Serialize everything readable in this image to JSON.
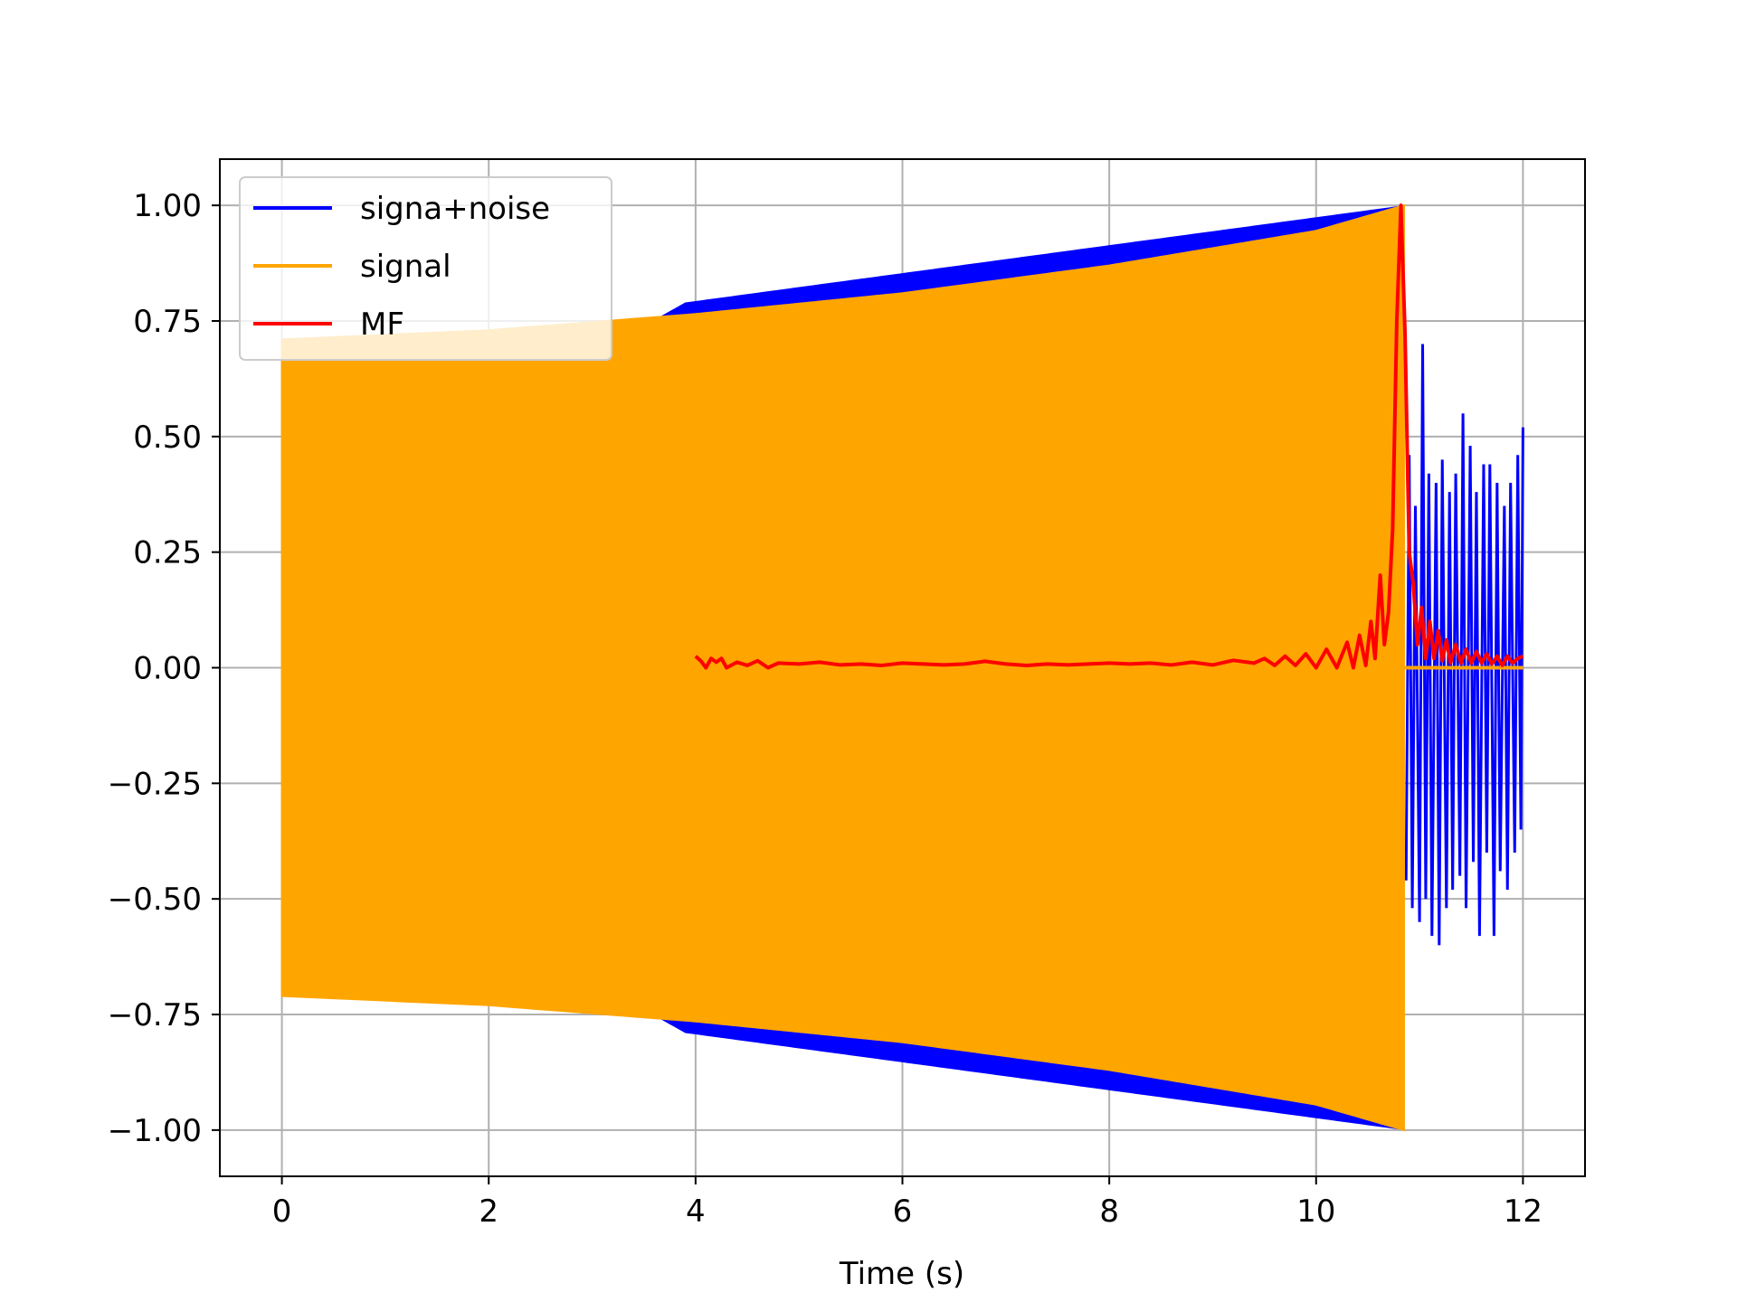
{
  "chart_data": {
    "type": "line",
    "title": "",
    "xlabel": "Time (s)",
    "ylabel": "",
    "xlim": [
      -0.6,
      12.6
    ],
    "ylim": [
      -1.1,
      1.1
    ],
    "grid": true,
    "legend_position": "top-left",
    "xticks": [
      0,
      2,
      4,
      6,
      8,
      10,
      12
    ],
    "xtick_labels": [
      "0",
      "2",
      "4",
      "6",
      "8",
      "10",
      "12"
    ],
    "yticks": [
      1.0,
      0.75,
      0.5,
      0.25,
      0.0,
      -0.25,
      -0.5,
      -0.75,
      -1.0
    ],
    "ytick_labels": [
      "1.00",
      "0.75",
      "0.50",
      "0.25",
      "0.00",
      "−0.25",
      "−0.50",
      "−0.75",
      "−1.00"
    ],
    "series": [
      {
        "name": "signa+noise",
        "color": "#0000ff",
        "t_start": 0.0,
        "t_end": 12.0,
        "signal_end": 10.85,
        "envelope": [
          [
            0.0,
            0.3
          ],
          [
            3.9,
            0.79
          ],
          [
            10.85,
            1.0
          ]
        ],
        "samples": [
          [
            10.87,
            -0.46
          ],
          [
            10.9,
            0.46
          ],
          [
            10.93,
            -0.52
          ],
          [
            10.96,
            0.35
          ],
          [
            11.0,
            -0.55
          ],
          [
            11.03,
            0.7
          ],
          [
            11.06,
            -0.5
          ],
          [
            11.09,
            0.42
          ],
          [
            11.12,
            -0.58
          ],
          [
            11.16,
            0.4
          ],
          [
            11.19,
            -0.6
          ],
          [
            11.22,
            0.45
          ],
          [
            11.26,
            -0.52
          ],
          [
            11.29,
            0.38
          ],
          [
            11.32,
            -0.48
          ],
          [
            11.35,
            0.42
          ],
          [
            11.39,
            -0.45
          ],
          [
            11.42,
            0.55
          ],
          [
            11.45,
            -0.52
          ],
          [
            11.49,
            0.48
          ],
          [
            11.52,
            -0.42
          ],
          [
            11.55,
            0.38
          ],
          [
            11.58,
            -0.58
          ],
          [
            11.62,
            0.44
          ],
          [
            11.65,
            -0.4
          ],
          [
            11.68,
            0.44
          ],
          [
            11.72,
            -0.58
          ],
          [
            11.75,
            0.4
          ],
          [
            11.78,
            -0.44
          ],
          [
            11.82,
            0.35
          ],
          [
            11.85,
            -0.48
          ],
          [
            11.88,
            0.4
          ],
          [
            11.92,
            -0.4
          ],
          [
            11.95,
            0.46
          ],
          [
            11.98,
            -0.35
          ],
          [
            12.0,
            0.52
          ]
        ]
      },
      {
        "name": "signal",
        "color": "#ffa500",
        "t_start": 0.0,
        "t_end": 12.0,
        "signal_end": 10.85,
        "envelope": [
          [
            0.0,
            0.71
          ],
          [
            2.0,
            0.73
          ],
          [
            4.0,
            0.765
          ],
          [
            6.0,
            0.81
          ],
          [
            8.0,
            0.87
          ],
          [
            10.0,
            0.945
          ],
          [
            10.85,
            1.0
          ]
        ]
      },
      {
        "name": "MF",
        "color": "#ff0000",
        "points": [
          [
            4.0,
            0.025
          ],
          [
            4.05,
            0.015
          ],
          [
            4.1,
            0.0
          ],
          [
            4.15,
            0.02
          ],
          [
            4.2,
            0.012
          ],
          [
            4.25,
            0.02
          ],
          [
            4.3,
            0.0
          ],
          [
            4.4,
            0.012
          ],
          [
            4.5,
            0.005
          ],
          [
            4.6,
            0.015
          ],
          [
            4.7,
            0.0
          ],
          [
            4.8,
            0.01
          ],
          [
            5.0,
            0.008
          ],
          [
            5.2,
            0.012
          ],
          [
            5.4,
            0.006
          ],
          [
            5.6,
            0.008
          ],
          [
            5.8,
            0.005
          ],
          [
            6.0,
            0.01
          ],
          [
            6.2,
            0.008
          ],
          [
            6.4,
            0.006
          ],
          [
            6.6,
            0.008
          ],
          [
            6.8,
            0.014
          ],
          [
            7.0,
            0.008
          ],
          [
            7.2,
            0.005
          ],
          [
            7.4,
            0.008
          ],
          [
            7.6,
            0.006
          ],
          [
            7.8,
            0.008
          ],
          [
            8.0,
            0.01
          ],
          [
            8.2,
            0.008
          ],
          [
            8.4,
            0.01
          ],
          [
            8.6,
            0.006
          ],
          [
            8.8,
            0.012
          ],
          [
            9.0,
            0.006
          ],
          [
            9.2,
            0.016
          ],
          [
            9.4,
            0.01
          ],
          [
            9.5,
            0.02
          ],
          [
            9.6,
            0.005
          ],
          [
            9.7,
            0.025
          ],
          [
            9.8,
            0.005
          ],
          [
            9.9,
            0.03
          ],
          [
            10.0,
            0.0
          ],
          [
            10.1,
            0.04
          ],
          [
            10.2,
            0.0
          ],
          [
            10.3,
            0.055
          ],
          [
            10.36,
            0.0
          ],
          [
            10.42,
            0.07
          ],
          [
            10.48,
            0.005
          ],
          [
            10.53,
            0.1
          ],
          [
            10.57,
            0.02
          ],
          [
            10.62,
            0.2
          ],
          [
            10.66,
            0.05
          ],
          [
            10.7,
            0.12
          ],
          [
            10.74,
            0.3
          ],
          [
            10.78,
            0.75
          ],
          [
            10.82,
            1.0
          ],
          [
            10.86,
            0.72
          ],
          [
            10.9,
            0.25
          ],
          [
            10.94,
            0.18
          ],
          [
            10.98,
            0.05
          ],
          [
            11.02,
            0.13
          ],
          [
            11.06,
            0.02
          ],
          [
            11.1,
            0.1
          ],
          [
            11.14,
            0.02
          ],
          [
            11.18,
            0.08
          ],
          [
            11.22,
            0.015
          ],
          [
            11.26,
            0.06
          ],
          [
            11.3,
            0.01
          ],
          [
            11.35,
            0.05
          ],
          [
            11.4,
            0.01
          ],
          [
            11.45,
            0.04
          ],
          [
            11.5,
            0.01
          ],
          [
            11.55,
            0.035
          ],
          [
            11.6,
            0.01
          ],
          [
            11.65,
            0.03
          ],
          [
            11.7,
            0.008
          ],
          [
            11.75,
            0.025
          ],
          [
            11.8,
            0.005
          ],
          [
            11.85,
            0.025
          ],
          [
            11.9,
            0.01
          ],
          [
            11.95,
            0.02
          ],
          [
            12.0,
            0.025
          ]
        ]
      }
    ]
  }
}
